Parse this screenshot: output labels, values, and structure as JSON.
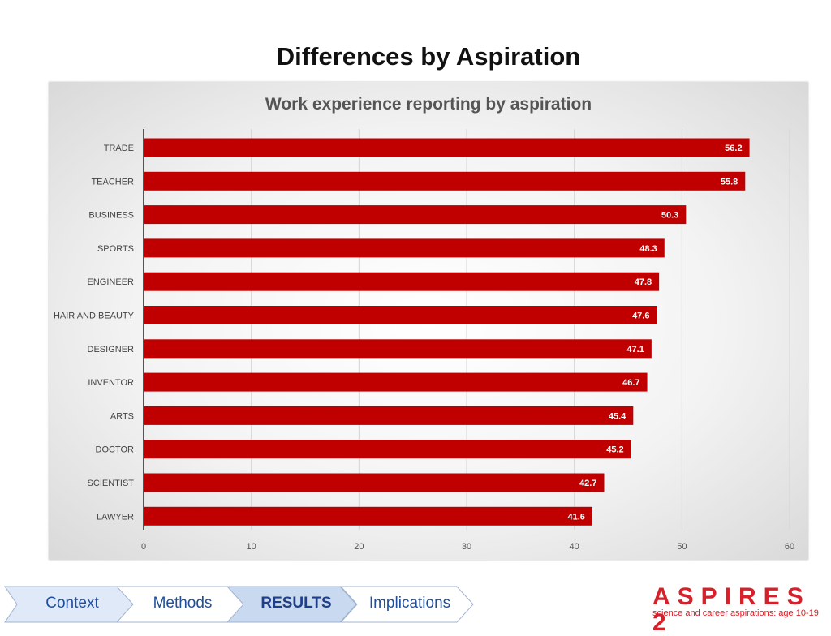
{
  "slide": {
    "title": "Differences by Aspiration"
  },
  "chart_data": {
    "type": "bar",
    "orientation": "horizontal",
    "title": "Work experience reporting by aspiration",
    "categories": [
      "TRADE",
      "TEACHER",
      "BUSINESS",
      "SPORTS",
      "ENGINEER",
      "HAIR AND BEAUTY",
      "DESIGNER",
      "INVENTOR",
      "ARTS",
      "DOCTOR",
      "SCIENTIST",
      "LAWYER"
    ],
    "values": [
      56.2,
      55.8,
      50.3,
      48.3,
      47.8,
      47.6,
      47.1,
      46.7,
      45.4,
      45.2,
      42.7,
      41.6
    ],
    "value_labels": [
      "56.2",
      "55.8",
      "50.3",
      "48.3",
      "47.8",
      "47.6",
      "47.1",
      "46.7",
      "45.4",
      "45.2",
      "42.7",
      "41.6"
    ],
    "xlim": [
      0,
      60
    ],
    "x_ticks": [
      "0",
      "10",
      "20",
      "30",
      "40",
      "50",
      "60"
    ],
    "grid": true,
    "bar_color": "#c00000"
  },
  "nav": {
    "steps": [
      {
        "label": "Context",
        "active": false
      },
      {
        "label": "Methods",
        "active": false
      },
      {
        "label": "RESULTS",
        "active": true
      },
      {
        "label": "Implications",
        "active": false
      }
    ]
  },
  "brand": {
    "name": "ASPIRES 2",
    "tagline": "science and career aspirations: age 10-19"
  }
}
